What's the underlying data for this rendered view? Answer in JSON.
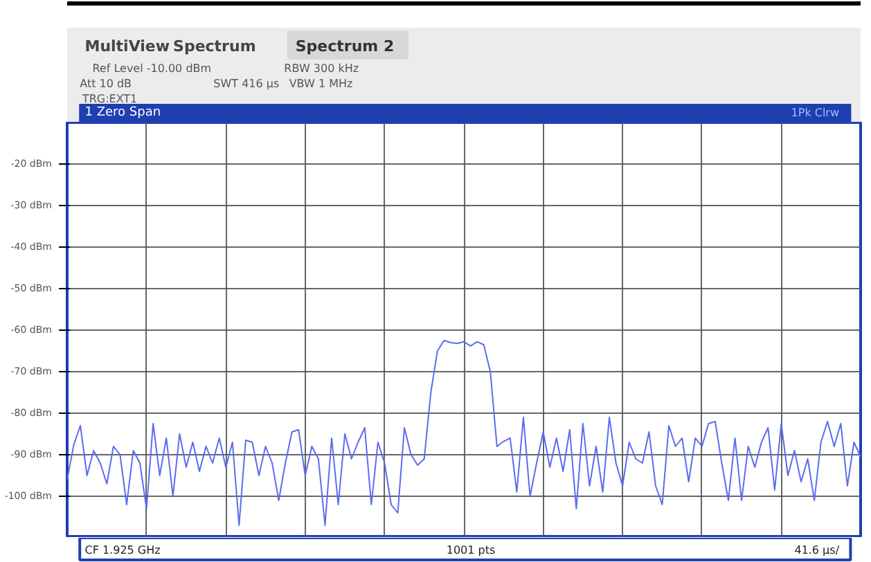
{
  "chart_data": {
    "type": "line",
    "title": "1 Zero Span",
    "annotations": [
      "MultiView",
      "Spectrum",
      "Spectrum 2",
      "Ref Level -10.00 dBm",
      "Att 10 dB",
      "SWT 416 µs",
      "RBW 300 kHz",
      "VBW 1 MHz",
      "TRG:EXT1",
      "1Pk Clrw",
      "CF 1.925 GHz",
      "1001 pts",
      "41.6 µs/"
    ],
    "series": [
      {
        "color": "#5a6cf0",
        "values": [
          -96,
          -87.6,
          -83,
          -95,
          -89,
          -92,
          -97,
          -88,
          -90,
          -102,
          -89,
          -92,
          -103,
          -82.5,
          -95,
          -86,
          -100,
          -85,
          -93,
          -87,
          -94,
          -88,
          -92,
          -86,
          -93,
          -87,
          -107,
          -86.5,
          -87,
          -95,
          -88,
          -92,
          -101,
          -92,
          -84.5,
          -84,
          -95,
          -88,
          -91,
          -107,
          -86,
          -102,
          -85,
          -91,
          -87,
          -83.5,
          -102,
          -87,
          -92,
          -102,
          -104,
          -83.5,
          -90,
          -92.5,
          -91,
          -75,
          -65,
          -62.5,
          -63,
          -63.2,
          -62.8,
          -63.8,
          -62.8,
          -63.5,
          -70,
          -88,
          -86.8,
          -86,
          -99,
          -81,
          -100,
          -92,
          -84.5,
          -93,
          -86,
          -94,
          -84,
          -103,
          -82.5,
          -97.5,
          -88,
          -99,
          -81,
          -92,
          -97.5,
          -87,
          -91,
          -92,
          -84.5,
          -97.5,
          -102,
          -83,
          -88,
          -86,
          -96.5,
          -86,
          -88,
          -82.5,
          -82,
          -92,
          -101,
          -86,
          -101,
          -88,
          -93,
          -87,
          -83.5,
          -98.5,
          -82.5,
          -95,
          -89,
          -96.5,
          -91,
          -101,
          -87,
          -82,
          -88,
          -82.5,
          -97.5,
          -87,
          -90.5
        ]
      }
    ],
    "categories": [
      null,
      null,
      null,
      null,
      null,
      null,
      null,
      null,
      null,
      null,
      null,
      null,
      null,
      null,
      null,
      null,
      null,
      null,
      null,
      null,
      null,
      null,
      null,
      null,
      null,
      null,
      null,
      null,
      null,
      null,
      null,
      null,
      null,
      null,
      null,
      null,
      null,
      null,
      null,
      null,
      null,
      null,
      null,
      null,
      null,
      null,
      null,
      null,
      null,
      null,
      null,
      null,
      null,
      null,
      null,
      null,
      null,
      null,
      null,
      null,
      null,
      null,
      null,
      null,
      null,
      null,
      null,
      null,
      null,
      null,
      null,
      null,
      null,
      null,
      null,
      null,
      null,
      null,
      null,
      null,
      null,
      null,
      null,
      null,
      null,
      null,
      null,
      null,
      null,
      null,
      null,
      null,
      null,
      null,
      null,
      null,
      null,
      null,
      null,
      null,
      null,
      null,
      null,
      null,
      null,
      null,
      null,
      null,
      null,
      null,
      null,
      null,
      null,
      null,
      null,
      null,
      null,
      null,
      null,
      null,
      null
    ],
    "ylim": [
      -110,
      -10
    ],
    "yticks": [
      {
        "value": -20,
        "label": "-20 dBm"
      },
      {
        "value": -30,
        "label": "-30 dBm"
      },
      {
        "value": -40,
        "label": "-40 dBm"
      },
      {
        "value": -50,
        "label": "-50 dBm"
      },
      {
        "value": -60,
        "label": "-60 dBm"
      },
      {
        "value": -70,
        "label": "-70 dBm"
      },
      {
        "value": -80,
        "label": "-80 dBm"
      },
      {
        "value": -90,
        "label": "-90 dBm"
      },
      {
        "value": -100,
        "label": "-100 dBm"
      }
    ],
    "tick_labels": "y",
    "grid": true,
    "marker": "none",
    "line_style": "solid"
  }
}
